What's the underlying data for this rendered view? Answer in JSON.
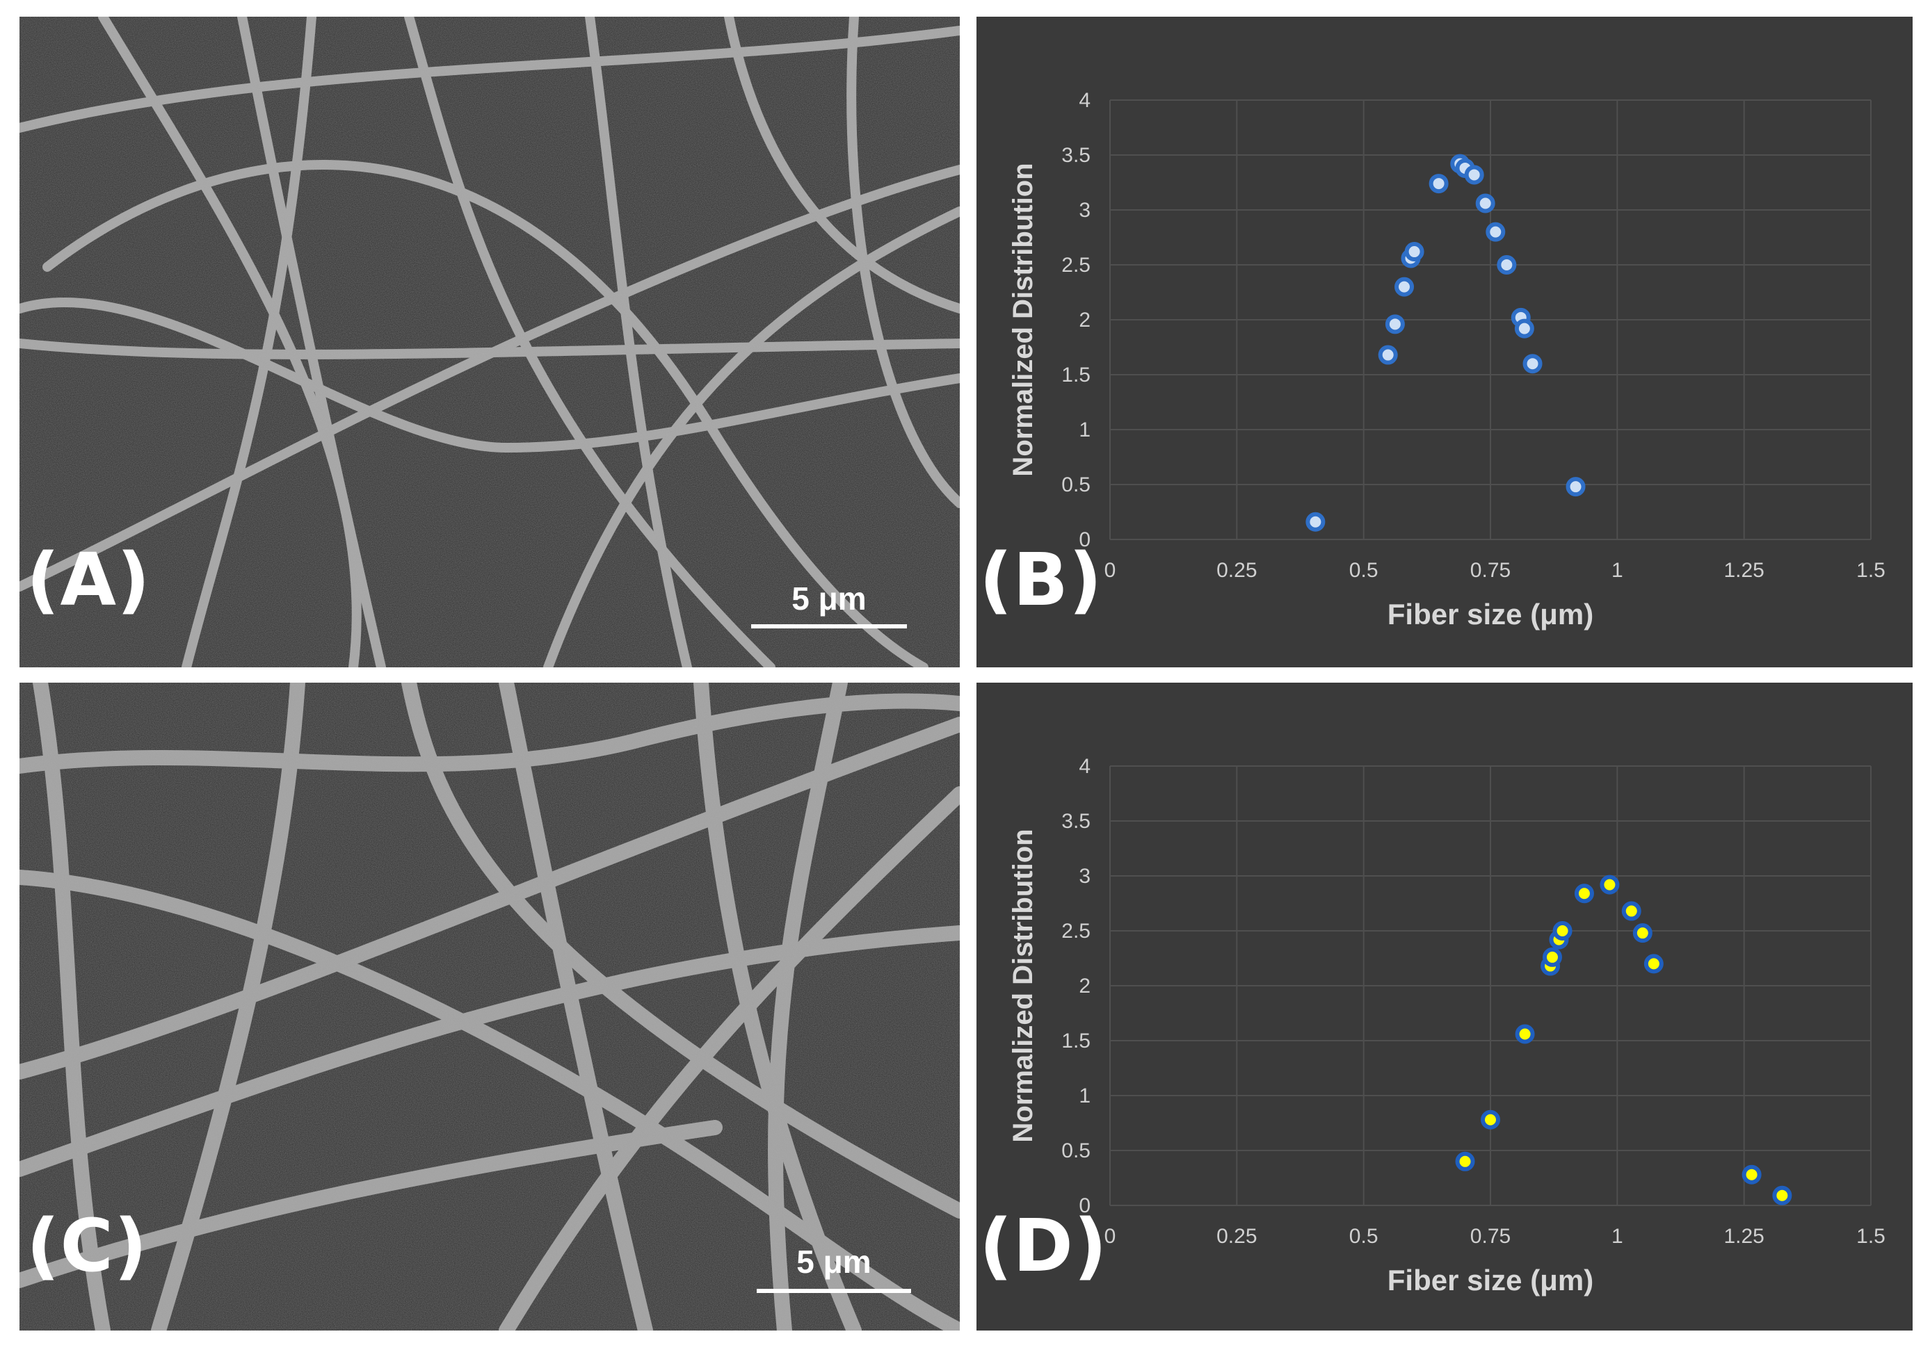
{
  "panels": [
    {
      "id": "A",
      "label": "(A)",
      "scale_label": "5 μm"
    },
    {
      "id": "B",
      "label": "(B)"
    },
    {
      "id": "C",
      "label": "(C)",
      "scale_label": "5 μm"
    },
    {
      "id": "D",
      "label": "(D)"
    }
  ],
  "chart_data": [
    {
      "panel": "B",
      "type": "scatter",
      "xlabel": "Fiber size (μm)",
      "ylabel": "Normalized Distribution",
      "xlim": [
        0,
        1.5
      ],
      "ylim": [
        0,
        4
      ],
      "xticks": [
        0,
        0.25,
        0.5,
        0.75,
        1,
        1.25,
        1.5
      ],
      "xtick_labels": [
        "0",
        "0.25",
        "0.5",
        "0.75",
        "1",
        "1.25",
        "1.5"
      ],
      "yticks": [
        0,
        0.5,
        1,
        1.5,
        2,
        2.5,
        3,
        3.5,
        4
      ],
      "ytick_labels": [
        "0",
        "0.5",
        "1",
        "1.5",
        "2",
        "2.5",
        "3",
        "3.5",
        "4"
      ],
      "grid": true,
      "marker_fill": "#cfe0f5",
      "marker_edge": "#2f6fc7",
      "points": [
        {
          "x": 0.405,
          "y": 0.16
        },
        {
          "x": 0.548,
          "y": 1.68
        },
        {
          "x": 0.562,
          "y": 1.96
        },
        {
          "x": 0.58,
          "y": 2.3
        },
        {
          "x": 0.593,
          "y": 2.56
        },
        {
          "x": 0.6,
          "y": 2.62
        },
        {
          "x": 0.648,
          "y": 3.24
        },
        {
          "x": 0.69,
          "y": 3.42
        },
        {
          "x": 0.7,
          "y": 3.38
        },
        {
          "x": 0.718,
          "y": 3.32
        },
        {
          "x": 0.74,
          "y": 3.06
        },
        {
          "x": 0.76,
          "y": 2.8
        },
        {
          "x": 0.782,
          "y": 2.5
        },
        {
          "x": 0.81,
          "y": 2.02
        },
        {
          "x": 0.817,
          "y": 1.92
        },
        {
          "x": 0.833,
          "y": 1.6
        },
        {
          "x": 0.918,
          "y": 0.48
        }
      ]
    },
    {
      "panel": "D",
      "type": "scatter",
      "xlabel": "Fiber size (μm)",
      "ylabel": "Normalized Distribution",
      "xlim": [
        0,
        1.5
      ],
      "ylim": [
        0,
        4
      ],
      "xticks": [
        0,
        0.25,
        0.5,
        0.75,
        1,
        1.25,
        1.5
      ],
      "xtick_labels": [
        "0",
        "0.25",
        "0.5",
        "0.75",
        "1",
        "1.25",
        "1.5"
      ],
      "yticks": [
        0,
        0.5,
        1,
        1.5,
        2,
        2.5,
        3,
        3.5,
        4
      ],
      "ytick_labels": [
        "0",
        "0.5",
        "1",
        "1.5",
        "2",
        "2.5",
        "3",
        "3.5",
        "4"
      ],
      "grid": true,
      "marker_fill": "#ffff00",
      "marker_edge": "#1f5fbf",
      "points": [
        {
          "x": 0.7,
          "y": 0.4
        },
        {
          "x": 0.75,
          "y": 0.78
        },
        {
          "x": 0.818,
          "y": 1.56
        },
        {
          "x": 0.868,
          "y": 2.18
        },
        {
          "x": 0.872,
          "y": 2.26
        },
        {
          "x": 0.885,
          "y": 2.42
        },
        {
          "x": 0.892,
          "y": 2.5
        },
        {
          "x": 0.935,
          "y": 2.84
        },
        {
          "x": 0.985,
          "y": 2.92
        },
        {
          "x": 1.028,
          "y": 2.68
        },
        {
          "x": 1.05,
          "y": 2.48
        },
        {
          "x": 1.072,
          "y": 2.2
        },
        {
          "x": 1.265,
          "y": 0.28
        },
        {
          "x": 1.325,
          "y": 0.09
        }
      ]
    }
  ]
}
